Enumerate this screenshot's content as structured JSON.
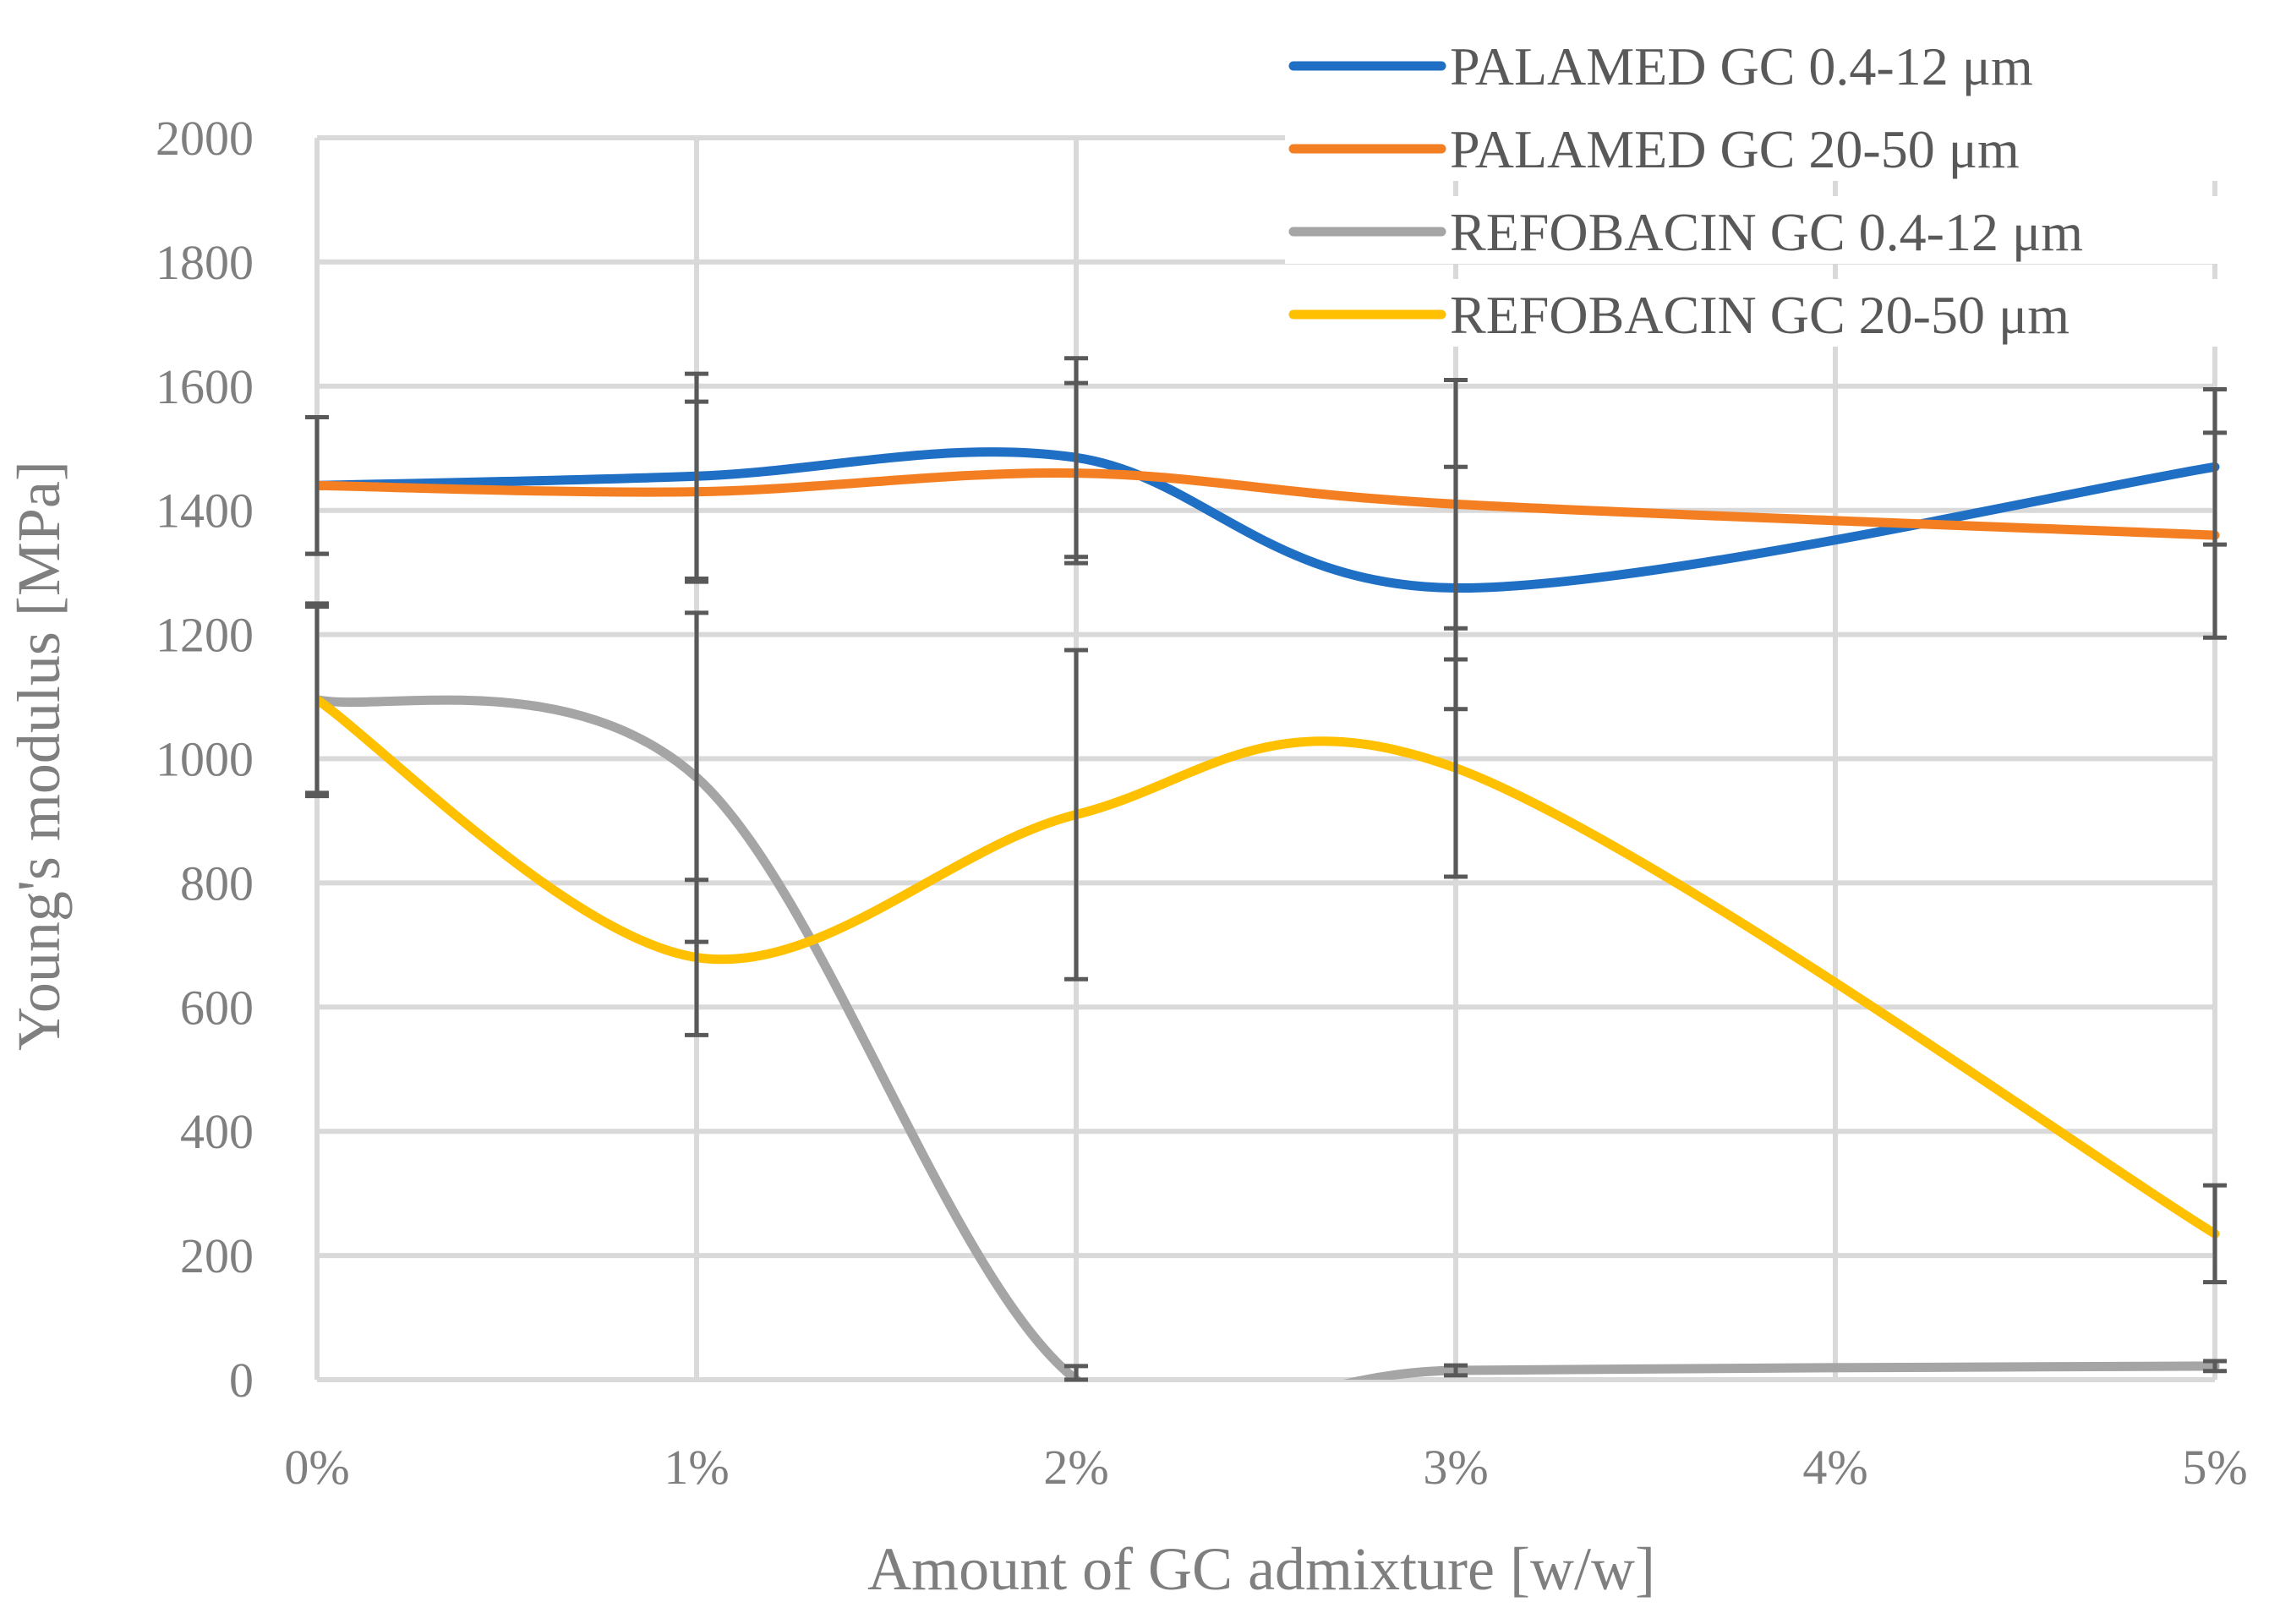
{
  "chart_data": {
    "type": "line",
    "title": "",
    "xlabel": "Amount of GC admixture [w/w]",
    "ylabel": "Young's modulus [MPa]",
    "categories": [
      "0%",
      "1%",
      "2%",
      "3%",
      "4%",
      "5%"
    ],
    "x": [
      0,
      1,
      2,
      3,
      4,
      5
    ],
    "xlim": [
      0,
      5
    ],
    "ylim": [
      0,
      2000
    ],
    "yticks": [
      0,
      200,
      400,
      600,
      800,
      1000,
      1200,
      1400,
      1600,
      1800,
      2000
    ],
    "grid": true,
    "smooth": true,
    "legend_position": "top-right",
    "series": [
      {
        "name": "PALAMED GC 0.4-12 μm",
        "color": "#1f6fc5",
        "x": [
          0,
          1,
          2,
          3,
          5
        ],
        "values": [
          1440,
          1455,
          1485,
          1275,
          1470
        ],
        "error": [
          110,
          165,
          160,
          195,
          125
        ]
      },
      {
        "name": "PALAMED GC 20-50 μm",
        "color": "#f47f22",
        "x": [
          0,
          1,
          2,
          3,
          5
        ],
        "values": [
          1440,
          1430,
          1460,
          1410,
          1360
        ],
        "error": [
          110,
          145,
          145,
          200,
          165
        ]
      },
      {
        "name": "REFOBACIN GC 0.4-12 μm",
        "color": "#a5a5a5",
        "x": [
          0,
          1,
          2,
          3,
          5
        ],
        "values": [
          1095,
          970,
          0,
          15,
          22
        ],
        "error": [
          150,
          265,
          22,
          8,
          8
        ]
      },
      {
        "name": "REFOBACIN GC 20-50 μm",
        "color": "#ffc000",
        "x": [
          0,
          1,
          2,
          3,
          5
        ],
        "values": [
          1095,
          680,
          910,
          985,
          235
        ],
        "error": [
          155,
          125,
          265,
          175,
          78
        ]
      }
    ]
  }
}
